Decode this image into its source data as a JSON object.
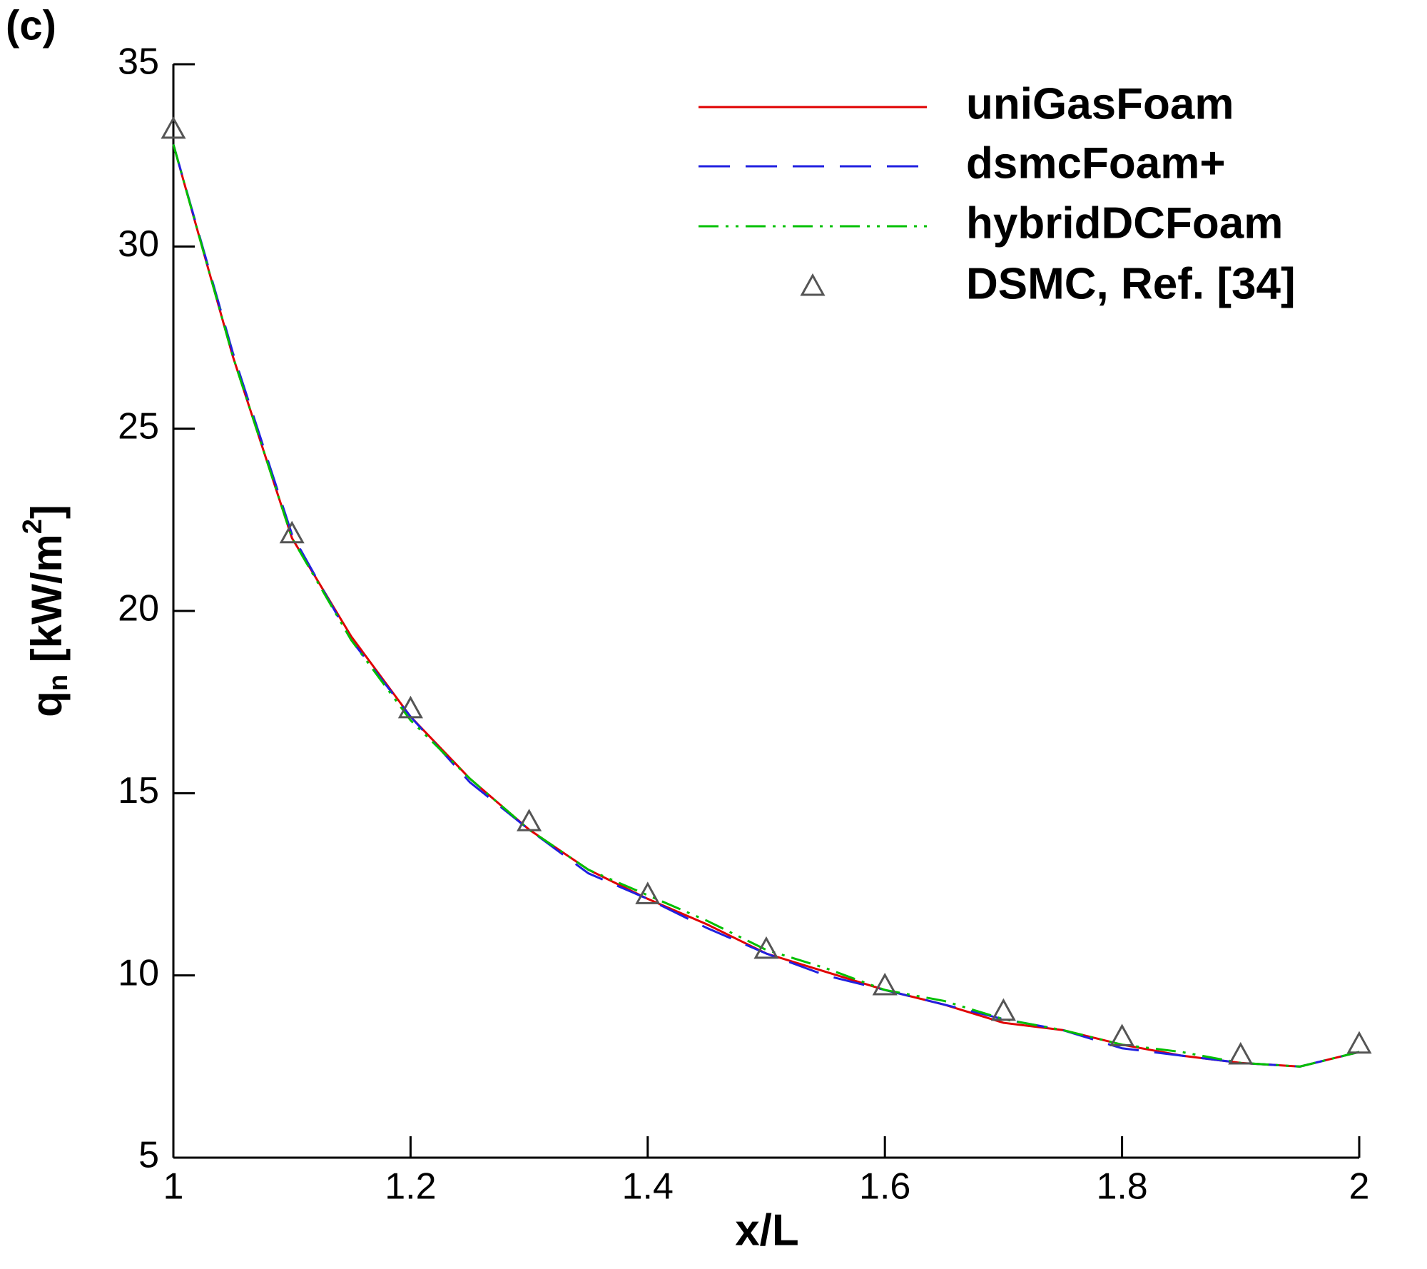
{
  "chart_data": {
    "type": "line",
    "panel_label": "(c)",
    "xlabel": "x/L",
    "ylabel_parts": [
      "q",
      "n",
      " [kW/m",
      "2",
      "]"
    ],
    "x": [
      1.0,
      1.05,
      1.1,
      1.15,
      1.2,
      1.25,
      1.3,
      1.35,
      1.4,
      1.45,
      1.5,
      1.55,
      1.6,
      1.65,
      1.7,
      1.75,
      1.8,
      1.85,
      1.9,
      1.95,
      2.0
    ],
    "series": [
      {
        "name": "uniGasFoam",
        "color": "#e00000",
        "style": "solid",
        "values": [
          32.8,
          27.0,
          22.0,
          19.3,
          17.1,
          15.4,
          14.0,
          12.9,
          12.1,
          11.4,
          10.6,
          10.1,
          9.6,
          9.2,
          8.7,
          8.5,
          8.1,
          7.8,
          7.6,
          7.5,
          7.9
        ]
      },
      {
        "name": "dsmcFoam+",
        "color": "#2020e0",
        "style": "dashed",
        "values": [
          32.8,
          27.1,
          22.1,
          19.2,
          17.1,
          15.3,
          14.0,
          12.8,
          12.1,
          11.3,
          10.6,
          10.0,
          9.6,
          9.2,
          8.8,
          8.5,
          8.0,
          7.8,
          7.6,
          7.5,
          7.9
        ]
      },
      {
        "name": "hybridDCFoam",
        "color": "#00c000",
        "style": "dashdotdot",
        "values": [
          32.8,
          27.0,
          22.0,
          19.2,
          17.0,
          15.4,
          14.0,
          12.9,
          12.2,
          11.5,
          10.7,
          10.2,
          9.6,
          9.3,
          8.8,
          8.5,
          8.1,
          7.9,
          7.6,
          7.5,
          7.9
        ]
      }
    ],
    "markers": {
      "name": "DSMC, Ref. [34]",
      "color": "#555555",
      "x": [
        1.0,
        1.1,
        1.2,
        1.3,
        1.4,
        1.5,
        1.6,
        1.7,
        1.8,
        1.9,
        2.0
      ],
      "values": [
        33.2,
        22.1,
        17.3,
        14.2,
        12.2,
        10.7,
        9.7,
        9.0,
        8.3,
        7.8,
        8.1
      ]
    },
    "xlim": [
      1,
      2
    ],
    "xticks": [
      1,
      1.2,
      1.4,
      1.6,
      1.8,
      2
    ],
    "ylim": [
      5,
      35
    ],
    "yticks": [
      5,
      10,
      15,
      20,
      25,
      30,
      35
    ],
    "legend": "upper right"
  }
}
